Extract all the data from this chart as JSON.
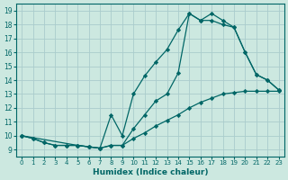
{
  "title": "",
  "xlabel": "Humidex (Indice chaleur)",
  "ylabel": "",
  "bg_color": "#cce8e0",
  "grid_color": "#aacccc",
  "line_color": "#006666",
  "xlim": [
    -0.5,
    23.5
  ],
  "ylim": [
    8.5,
    19.5
  ],
  "xticks": [
    0,
    1,
    2,
    3,
    4,
    5,
    6,
    7,
    8,
    9,
    10,
    11,
    12,
    13,
    14,
    15,
    16,
    17,
    18,
    19,
    20,
    21,
    22,
    23
  ],
  "yticks": [
    9,
    10,
    11,
    12,
    13,
    14,
    15,
    16,
    17,
    18,
    19
  ],
  "series": [
    {
      "x": [
        0,
        1,
        2,
        3,
        4,
        5,
        6,
        7,
        8,
        9,
        10,
        11,
        12,
        13,
        14,
        15,
        16,
        17,
        18,
        19,
        20,
        21,
        22,
        23
      ],
      "y": [
        10,
        9.8,
        9.5,
        9.3,
        9.3,
        9.3,
        9.2,
        9.1,
        9.3,
        9.3,
        9.8,
        10.2,
        10.7,
        11.1,
        11.5,
        12.0,
        12.4,
        12.7,
        13.0,
        13.1,
        13.2,
        13.2,
        13.2,
        13.2
      ]
    },
    {
      "x": [
        0,
        5,
        6,
        7,
        8,
        9,
        10,
        11,
        12,
        13,
        14,
        15,
        16,
        17,
        18,
        19,
        20,
        21,
        22,
        23
      ],
      "y": [
        10,
        9.3,
        9.2,
        9.1,
        11.5,
        10.0,
        13.0,
        14.3,
        15.3,
        16.2,
        17.6,
        18.8,
        18.3,
        18.3,
        18.0,
        17.8,
        16.0,
        14.4,
        14.0,
        13.3
      ]
    },
    {
      "x": [
        0,
        1,
        2,
        3,
        4,
        5,
        6,
        7,
        8,
        9,
        10,
        11,
        12,
        13,
        14,
        15,
        16,
        17,
        18,
        19,
        20,
        21,
        22,
        23
      ],
      "y": [
        10,
        9.8,
        9.5,
        9.3,
        9.3,
        9.3,
        9.2,
        9.1,
        9.3,
        9.3,
        10.5,
        11.5,
        12.5,
        13.0,
        14.5,
        18.8,
        18.3,
        18.8,
        18.3,
        17.8,
        16.0,
        14.4,
        14.0,
        13.3
      ]
    }
  ]
}
